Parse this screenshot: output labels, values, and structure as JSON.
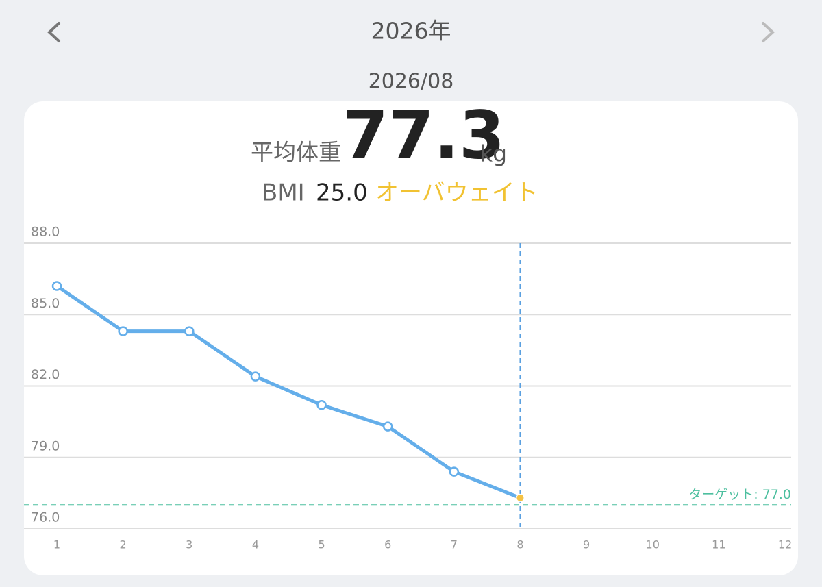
{
  "header": {
    "year": "2026年",
    "month": "2026/08"
  },
  "summary": {
    "label": "平均体重",
    "value": "77.3",
    "unit": "kg",
    "bmi_label": "BMI",
    "bmi": "25.0",
    "status": "オーバウェイト"
  },
  "chart_data": {
    "type": "line",
    "categories": [
      "1",
      "2",
      "3",
      "4",
      "5",
      "6",
      "7",
      "8",
      "9",
      "10",
      "11",
      "12"
    ],
    "values": [
      86.2,
      84.3,
      84.3,
      82.4,
      81.2,
      80.3,
      78.4,
      77.3,
      null,
      null,
      null,
      null
    ],
    "color": "#64aeea",
    "highlight_color": "#f4c244",
    "selected_index": 7,
    "ylim": [
      76,
      88
    ],
    "yticks": [
      {
        "value": 76,
        "label": "76.0"
      },
      {
        "value": 79,
        "label": "79.0"
      },
      {
        "value": 82,
        "label": "82.0"
      },
      {
        "value": 85,
        "label": "85.0"
      },
      {
        "value": 88,
        "label": "88.0"
      }
    ],
    "grid": true,
    "target": {
      "value": 77,
      "label": "ターゲット: 77.0",
      "color": "#4dbf9f"
    }
  }
}
